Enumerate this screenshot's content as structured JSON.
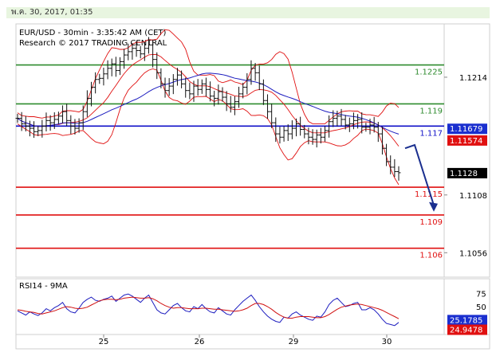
{
  "header": {
    "date_text": "พ.ค. 30, 2017, 01:35"
  },
  "chart": {
    "title_line1": "EUR/USD - 30min - 3:35:42 AM (CET)",
    "title_line2": "Research © 2017 TRADING CENTRAL",
    "rsi_label": "RSI14 - 9MA"
  },
  "chart_data": [
    {
      "type": "line",
      "title": "EUR/USD - 30min - 3:35:42 AM (CET)",
      "subtitle": "Research © 2017 TRADING CENTRAL",
      "x_ticks": [
        "25",
        "26",
        "29",
        "30"
      ],
      "ylim": [
        1.1034,
        1.1262
      ],
      "y_ticks": [
        1.1214,
        1.1108,
        1.1056
      ],
      "series": [
        {
          "values": [
            1.1177,
            1.1172,
            1.117,
            1.1168,
            1.1165,
            1.1166,
            1.117,
            1.1175,
            1.1173,
            1.1176,
            1.1179,
            1.1183,
            1.1175,
            1.117,
            1.1168,
            1.1173,
            1.1183,
            1.1195,
            1.1205,
            1.1212,
            1.1213,
            1.1217,
            1.1222,
            1.1226,
            1.122,
            1.1228,
            1.1234,
            1.1237,
            1.124,
            1.1238,
            1.1235,
            1.124,
            1.1243,
            1.123,
            1.1218,
            1.1208,
            1.1202,
            1.1206,
            1.1212,
            1.1216,
            1.1208,
            1.1202,
            1.1199,
            1.1206,
            1.1203,
            1.1208,
            1.1203,
            1.1197,
            1.1195,
            1.1201,
            1.1196,
            1.119,
            1.1187,
            1.1192,
            1.1199,
            1.1205,
            1.1212,
            1.1222,
            1.1218,
            1.1208,
            1.1193,
            1.1183,
            1.1173,
            1.1163,
            1.116,
            1.1166,
            1.1163,
            1.1168,
            1.1172,
            1.1167,
            1.1163,
            1.116,
            1.1158,
            1.1162,
            1.116,
            1.1166,
            1.1174,
            1.1177,
            1.1179,
            1.1176,
            1.1171,
            1.1172,
            1.1175,
            1.1176,
            1.1169,
            1.1169,
            1.1171,
            1.1169,
            1.1163,
            1.115,
            1.1138,
            1.1133,
            1.1129,
            1.1128
          ]
        }
      ],
      "indicators": {
        "moving_average_color": "#1c1cbf",
        "bollinger_color": "#e01010"
      },
      "levels": [
        {
          "value": 1.1225,
          "label": "1.1225",
          "color": "#2e8b2e"
        },
        {
          "value": 1.119,
          "label": "1.119",
          "color": "#2e8b2e"
        },
        {
          "value": 1.117,
          "label": "1.117",
          "color": "#1010c8"
        },
        {
          "value": 1.1115,
          "label": "1.1115",
          "color": "#e01010"
        },
        {
          "value": 1.109,
          "label": "1.109",
          "color": "#e01010"
        },
        {
          "value": 1.106,
          "label": "1.106",
          "color": "#e01010"
        }
      ],
      "price_tags": [
        {
          "value": 1.11679,
          "label": "1.11679",
          "color": "#1a2fcf"
        },
        {
          "value": 1.11574,
          "label": "1.11574",
          "color": "#e01010"
        },
        {
          "value": 1.1128,
          "label": "1.1128",
          "color": "#000000"
        }
      ],
      "forecast_arrow": {
        "from": 1.115,
        "via": 1.1153,
        "to": 1.1093,
        "direction": "down"
      }
    },
    {
      "type": "line",
      "title": "RSI14 - 9MA",
      "ylim": [
        0,
        100
      ],
      "y_ticks": [
        75,
        50,
        25
      ],
      "series": [
        {
          "name": "RSI14",
          "color": "#1c1cbf",
          "values": [
            42,
            38,
            34,
            40,
            36,
            33,
            38,
            46,
            42,
            48,
            52,
            58,
            46,
            40,
            38,
            47,
            58,
            64,
            68,
            62,
            60,
            64,
            66,
            70,
            60,
            66,
            72,
            74,
            70,
            64,
            58,
            66,
            72,
            58,
            44,
            38,
            36,
            44,
            52,
            56,
            48,
            42,
            40,
            50,
            46,
            54,
            46,
            40,
            38,
            48,
            42,
            36,
            34,
            44,
            52,
            60,
            66,
            72,
            62,
            50,
            40,
            32,
            26,
            22,
            20,
            30,
            28,
            36,
            40,
            34,
            30,
            26,
            24,
            32,
            30,
            40,
            54,
            62,
            66,
            58,
            50,
            52,
            56,
            58,
            44,
            44,
            48,
            44,
            36,
            26,
            18,
            16,
            14,
            20
          ]
        },
        {
          "name": "9MA",
          "color": "#d01010",
          "values": [
            44,
            43,
            41,
            40,
            39,
            37,
            36,
            38,
            40,
            42,
            45,
            48,
            50,
            49,
            47,
            46,
            47,
            49,
            53,
            57,
            61,
            63,
            64,
            64,
            63,
            64,
            66,
            67,
            68,
            67,
            66,
            66,
            67,
            65,
            61,
            56,
            52,
            49,
            47,
            48,
            48,
            47,
            46,
            46,
            46,
            47,
            47,
            46,
            45,
            45,
            44,
            43,
            42,
            41,
            42,
            44,
            47,
            52,
            56,
            56,
            54,
            50,
            45,
            39,
            34,
            30,
            28,
            28,
            30,
            31,
            31,
            31,
            30,
            29,
            29,
            31,
            35,
            40,
            45,
            49,
            51,
            53,
            54,
            55,
            54,
            52,
            50,
            48,
            46,
            43,
            39,
            35,
            31,
            27
          ]
        }
      ],
      "price_tags": [
        {
          "value": 25.1785,
          "label": "25.1785",
          "color": "#1a2fcf"
        },
        {
          "value": 24.9478,
          "label": "24.9478",
          "color": "#e01010"
        }
      ]
    }
  ]
}
